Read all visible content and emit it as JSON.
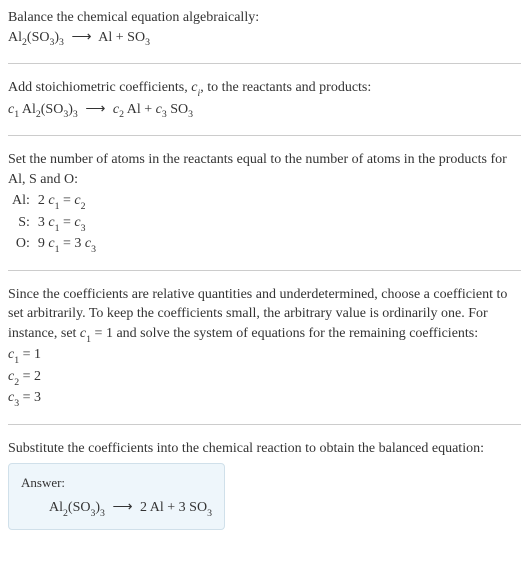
{
  "intro": {
    "line1": "Balance the chemical equation algebraically:",
    "reaction_lhs": "Al",
    "reaction_lhs_sub1": "2",
    "reaction_lhs_mid": "(SO",
    "reaction_lhs_sub2": "3",
    "reaction_lhs_end": ")",
    "reaction_lhs_sub3": "3",
    "arrow": "⟶",
    "reaction_rhs_1": "Al + SO",
    "reaction_rhs_1_sub": "3"
  },
  "step1": {
    "text_a": "Add stoichiometric coefficients, ",
    "ci": "c",
    "ci_sub": "i",
    "text_b": ", to the reactants and products:",
    "c1": "c",
    "c1_sub": "1",
    "sp1": " Al",
    "sp1_sub1": "2",
    "sp1_mid": "(SO",
    "sp1_sub2": "3",
    "sp1_end": ")",
    "sp1_sub3": "3",
    "arrow": "⟶",
    "c2": "c",
    "c2_sub": "2",
    "sp2": " Al + ",
    "c3": "c",
    "c3_sub": "3",
    "sp3": " SO",
    "sp3_sub": "3"
  },
  "step2": {
    "text": "Set the number of atoms in the reactants equal to the number of atoms in the products for Al, S and O:",
    "rows": [
      {
        "label": "Al:",
        "lhs_coef": "2 ",
        "lhs_c": "c",
        "lhs_sub": "1",
        "eq": " = ",
        "rhs_c": "c",
        "rhs_sub": "2",
        "rhs_extra": ""
      },
      {
        "label": "S:",
        "lhs_coef": "3 ",
        "lhs_c": "c",
        "lhs_sub": "1",
        "eq": " = ",
        "rhs_c": "c",
        "rhs_sub": "3",
        "rhs_extra": ""
      },
      {
        "label": "O:",
        "lhs_coef": "9 ",
        "lhs_c": "c",
        "lhs_sub": "1",
        "eq": " = 3 ",
        "rhs_c": "c",
        "rhs_sub": "3",
        "rhs_extra": ""
      }
    ]
  },
  "step3": {
    "text_a": "Since the coefficients are relative quantities and underdetermined, choose a coefficient to set arbitrarily. To keep the coefficients small, the arbitrary value is ordinarily one. For instance, set ",
    "c1": "c",
    "c1_sub": "1",
    "text_b": " = 1 and solve the system of equations for the remaining coefficients:",
    "sol": [
      {
        "c": "c",
        "sub": "1",
        "val": " = 1"
      },
      {
        "c": "c",
        "sub": "2",
        "val": " = 2"
      },
      {
        "c": "c",
        "sub": "3",
        "val": " = 3"
      }
    ]
  },
  "step4": {
    "text": "Substitute the coefficients into the chemical reaction to obtain the balanced equation:"
  },
  "answer": {
    "label": "Answer:",
    "lhs": "Al",
    "lhs_sub1": "2",
    "lhs_mid": "(SO",
    "lhs_sub2": "3",
    "lhs_end": ")",
    "lhs_sub3": "3",
    "arrow": "⟶",
    "rhs": "2 Al + 3 SO",
    "rhs_sub": "3"
  }
}
